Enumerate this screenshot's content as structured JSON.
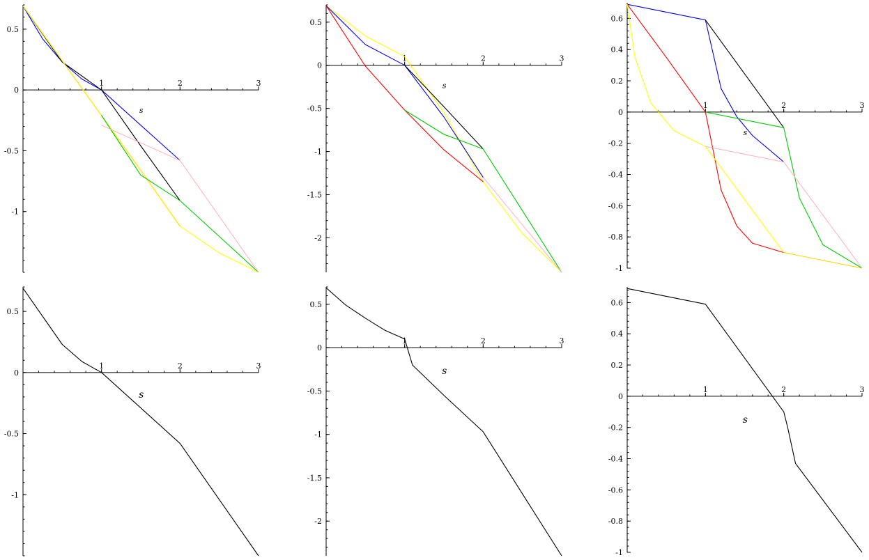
{
  "chart_data": [
    {
      "type": "line",
      "xlabel": "s",
      "xlim": [
        0,
        3
      ],
      "ylim": [
        -1.5,
        0.7
      ],
      "xticks": [
        1,
        2,
        3
      ],
      "yticks": [
        0.5,
        0,
        -0.5,
        -1
      ],
      "ytick_labels": [
        "0.5",
        "0",
        "-0.5",
        "-1"
      ],
      "series": [
        {
          "color": "#ff0000",
          "x": [
            0,
            0.5,
            1,
            1.5,
            2
          ],
          "y": [
            0.69,
            0.24,
            -0.21,
            -0.66,
            -1.12
          ]
        },
        {
          "color": "#ffa500",
          "x": [
            0,
            0.5,
            1,
            1.5,
            2
          ],
          "y": [
            0.69,
            0.24,
            -0.21,
            -0.66,
            -1.12
          ]
        },
        {
          "color": "#0000ff",
          "x": [
            0,
            0.25,
            0.5,
            0.75,
            1,
            1.5,
            2
          ],
          "y": [
            0.69,
            0.42,
            0.23,
            0.09,
            0.0,
            -0.29,
            -0.58
          ]
        },
        {
          "color": "#000000",
          "x": [
            0,
            0.5,
            1,
            1.5,
            2
          ],
          "y": [
            0.69,
            0.23,
            0.0,
            -0.46,
            -0.91
          ]
        },
        {
          "color": "#ffff00",
          "x": [
            0,
            0.5,
            1,
            1.5,
            2,
            2.5,
            3
          ],
          "y": [
            0.69,
            0.24,
            -0.21,
            -0.66,
            -1.12,
            -1.34,
            -1.5
          ]
        },
        {
          "color": "#00cc00",
          "x": [
            1,
            1.5,
            2,
            3
          ],
          "y": [
            -0.21,
            -0.7,
            -0.91,
            -1.5
          ]
        },
        {
          "color": "#ffb6c1",
          "x": [
            1,
            2,
            3
          ],
          "y": [
            -0.29,
            -0.58,
            -1.5
          ]
        }
      ]
    },
    {
      "type": "line",
      "xlabel": "s",
      "xlim": [
        0,
        3
      ],
      "ylim": [
        -2.4,
        0.7
      ],
      "xticks": [
        1,
        2,
        3
      ],
      "yticks": [
        0.5,
        0,
        -0.5,
        -1,
        -1.5,
        -2
      ],
      "ytick_labels": [
        "0.5",
        "0",
        "-0.5",
        "-1",
        "-1.5",
        "-2"
      ],
      "series": [
        {
          "color": "#ffff00",
          "x": [
            0,
            0.5,
            1,
            1.5,
            2,
            2.5,
            3
          ],
          "y": [
            0.69,
            0.34,
            0.1,
            -0.55,
            -1.35,
            -1.95,
            -2.4
          ]
        },
        {
          "color": "#0000ff",
          "x": [
            0,
            0.5,
            1,
            1.5,
            2
          ],
          "y": [
            0.69,
            0.24,
            0.0,
            -0.6,
            -1.3
          ]
        },
        {
          "color": "#ff0000",
          "x": [
            0,
            0.5,
            1,
            1.5,
            2
          ],
          "y": [
            0.69,
            -0.01,
            -0.52,
            -0.98,
            -1.35
          ]
        },
        {
          "color": "#000000",
          "x": [
            1,
            1.5,
            2
          ],
          "y": [
            0.0,
            -0.48,
            -0.97
          ]
        },
        {
          "color": "#00cc00",
          "x": [
            1,
            1.5,
            2,
            3
          ],
          "y": [
            -0.52,
            -0.8,
            -0.97,
            -2.4
          ]
        },
        {
          "color": "#ffb6c1",
          "x": [
            2,
            3
          ],
          "y": [
            -1.3,
            -2.4
          ]
        }
      ]
    },
    {
      "type": "line",
      "xlabel": "s",
      "xlim": [
        0,
        3
      ],
      "ylim": [
        -1.0,
        0.7
      ],
      "xticks": [
        1,
        2,
        3
      ],
      "yticks": [
        0.6,
        0.4,
        0.2,
        0,
        -0.2,
        -0.4,
        -0.6,
        -0.8,
        -1
      ],
      "ytick_labels": [
        "0.6",
        "0.4",
        "0.2",
        "0",
        "-0.2",
        "-0.4",
        "-0.6",
        "-0.8",
        "-1"
      ],
      "series": [
        {
          "color": "#0000ff",
          "x": [
            0,
            1,
            1.2,
            1.4,
            1.6,
            2
          ],
          "y": [
            0.69,
            0.59,
            0.15,
            -0.03,
            -0.15,
            -0.32
          ]
        },
        {
          "color": "#000000",
          "x": [
            1,
            2
          ],
          "y": [
            0.59,
            -0.1
          ]
        },
        {
          "color": "#ff0000",
          "x": [
            0,
            0.5,
            1,
            1.2,
            1.4,
            1.6,
            2
          ],
          "y": [
            0.69,
            0.35,
            0.0,
            -0.5,
            -0.73,
            -0.84,
            -0.9
          ]
        },
        {
          "color": "#ffff00",
          "x": [
            0,
            0.1,
            0.3,
            0.6,
            1,
            2
          ],
          "y": [
            0.69,
            0.35,
            0.06,
            -0.12,
            -0.22,
            -0.9
          ]
        },
        {
          "color": "#ffd700",
          "x": [
            2,
            3
          ],
          "y": [
            -0.9,
            -1.0
          ]
        },
        {
          "color": "#00cc00",
          "x": [
            1,
            2,
            2.2,
            2.5,
            3
          ],
          "y": [
            0.0,
            -0.1,
            -0.55,
            -0.85,
            -1.0
          ]
        },
        {
          "color": "#ffb6c1",
          "x": [
            1,
            2,
            3
          ],
          "y": [
            -0.22,
            -0.32,
            -1.0
          ]
        }
      ]
    },
    {
      "type": "line",
      "xlabel": "s",
      "xlim": [
        0,
        3
      ],
      "ylim": [
        -1.5,
        0.7
      ],
      "xticks": [
        1,
        2,
        3
      ],
      "yticks": [
        0.5,
        0,
        -0.5,
        -1
      ],
      "ytick_labels": [
        "0.5",
        "0",
        "-0.5",
        "-1"
      ],
      "series": [
        {
          "color": "#000000",
          "x": [
            0,
            0.5,
            0.75,
            1,
            1.5,
            2,
            3
          ],
          "y": [
            0.69,
            0.23,
            0.09,
            0.0,
            -0.29,
            -0.58,
            -1.5
          ]
        }
      ]
    },
    {
      "type": "line",
      "xlabel": "s",
      "xlim": [
        0,
        3
      ],
      "ylim": [
        -2.4,
        0.7
      ],
      "xticks": [
        1,
        2,
        3
      ],
      "yticks": [
        0.5,
        0,
        -0.5,
        -1,
        -1.5,
        -2
      ],
      "ytick_labels": [
        "0.5",
        "0",
        "-0.5",
        "-1",
        "-1.5",
        "-2"
      ],
      "series": [
        {
          "color": "#000000",
          "x": [
            0,
            0.25,
            0.5,
            0.75,
            1,
            1.1,
            1.5,
            2,
            3
          ],
          "y": [
            0.69,
            0.49,
            0.34,
            0.2,
            0.1,
            -0.2,
            -0.55,
            -0.97,
            -2.4
          ]
        }
      ]
    },
    {
      "type": "line",
      "xlabel": "s",
      "xlim": [
        0,
        3
      ],
      "ylim": [
        -1.0,
        0.7
      ],
      "xticks": [
        1,
        2,
        3
      ],
      "yticks": [
        0.6,
        0.4,
        0.2,
        0,
        -0.2,
        -0.4,
        -0.6,
        -0.8,
        -1
      ],
      "ytick_labels": [
        "0.6",
        "0.4",
        "0.2",
        "0",
        "-0.2",
        "-0.4",
        "-0.6",
        "-0.8",
        "-1"
      ],
      "series": [
        {
          "color": "#000000",
          "x": [
            0,
            1,
            2,
            2.05,
            2.15,
            3
          ],
          "y": [
            0.69,
            0.59,
            -0.1,
            -0.2,
            -0.43,
            -1.0
          ]
        }
      ]
    }
  ]
}
